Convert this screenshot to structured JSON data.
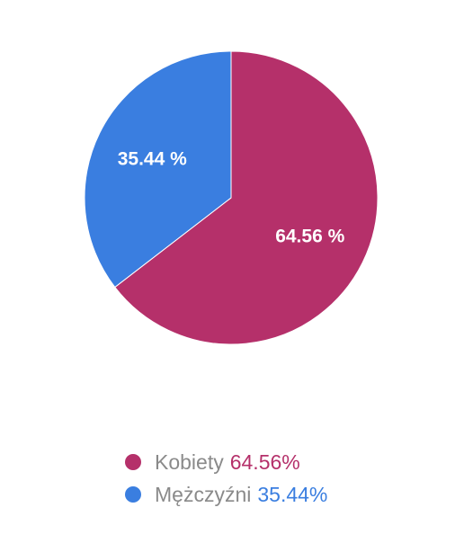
{
  "chart_data": {
    "type": "pie",
    "slices": [
      {
        "name": "Kobiety",
        "value": 64.56,
        "color": "#b5306a",
        "slice_label": "64.56 %",
        "legend_value": "64.56%"
      },
      {
        "name": "Mężczyźni",
        "value": 35.44,
        "color": "#3a7ee0",
        "slice_label": "35.44 %",
        "legend_value": "35.44%"
      }
    ],
    "legend_position": "bottom"
  }
}
